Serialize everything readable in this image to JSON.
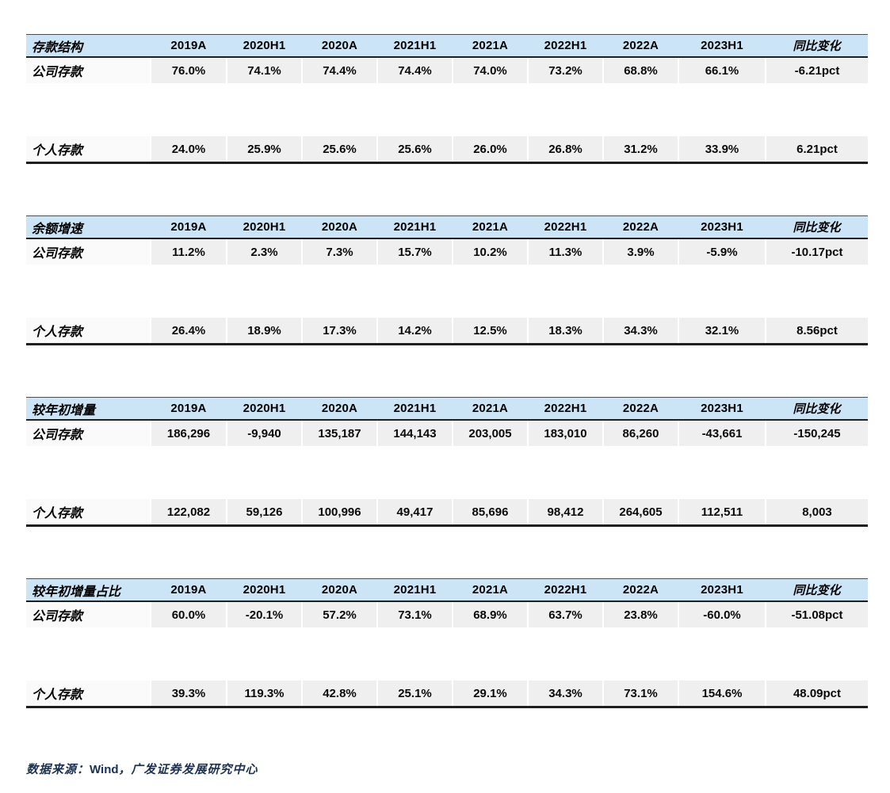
{
  "columns": [
    "2019A",
    "2020H1",
    "2020A",
    "2021H1",
    "2021A",
    "2022H1",
    "2022A",
    "2023H1",
    "同比变化"
  ],
  "sections": [
    {
      "title": "存款结构",
      "rows": [
        {
          "label": "公司存款",
          "values": [
            "76.0%",
            "74.1%",
            "74.4%",
            "74.4%",
            "74.0%",
            "73.2%",
            "68.8%",
            "66.1%",
            "-6.21pct"
          ]
        },
        {
          "label": "个人存款",
          "values": [
            "24.0%",
            "25.9%",
            "25.6%",
            "25.6%",
            "26.0%",
            "26.8%",
            "31.2%",
            "33.9%",
            "6.21pct"
          ]
        }
      ]
    },
    {
      "title": "余额增速",
      "rows": [
        {
          "label": "公司存款",
          "values": [
            "11.2%",
            "2.3%",
            "7.3%",
            "15.7%",
            "10.2%",
            "11.3%",
            "3.9%",
            "-5.9%",
            "-10.17pct"
          ]
        },
        {
          "label": "个人存款",
          "values": [
            "26.4%",
            "18.9%",
            "17.3%",
            "14.2%",
            "12.5%",
            "18.3%",
            "34.3%",
            "32.1%",
            "8.56pct"
          ]
        }
      ]
    },
    {
      "title": "较年初增量",
      "rows": [
        {
          "label": "公司存款",
          "values": [
            "186,296",
            "-9,940",
            "135,187",
            "144,143",
            "203,005",
            "183,010",
            "86,260",
            "-43,661",
            "-150,245"
          ]
        },
        {
          "label": "个人存款",
          "values": [
            "122,082",
            "59,126",
            "100,996",
            "49,417",
            "85,696",
            "98,412",
            "264,605",
            "112,511",
            "8,003"
          ]
        }
      ]
    },
    {
      "title": "较年初增量占比",
      "rows": [
        {
          "label": "公司存款",
          "values": [
            "60.0%",
            "-20.1%",
            "57.2%",
            "73.1%",
            "68.9%",
            "63.7%",
            "23.8%",
            "-60.0%",
            "-51.08pct"
          ]
        },
        {
          "label": "个人存款",
          "values": [
            "39.3%",
            "119.3%",
            "42.8%",
            "25.1%",
            "29.1%",
            "34.3%",
            "73.1%",
            "154.6%",
            "48.09pct"
          ]
        }
      ]
    }
  ],
  "footer": {
    "source_label": "数据来源：",
    "source_brand": "Wind",
    "source_suffix": "，广发证券发展研究中心"
  },
  "colors": {
    "header_bg": "#CBE5F7",
    "value_cell_bg": "#EFEFEF",
    "label_cell_bg": "#FAFAFA",
    "border_dark": "#1F1F1F",
    "footer_text": "#1B3152"
  }
}
